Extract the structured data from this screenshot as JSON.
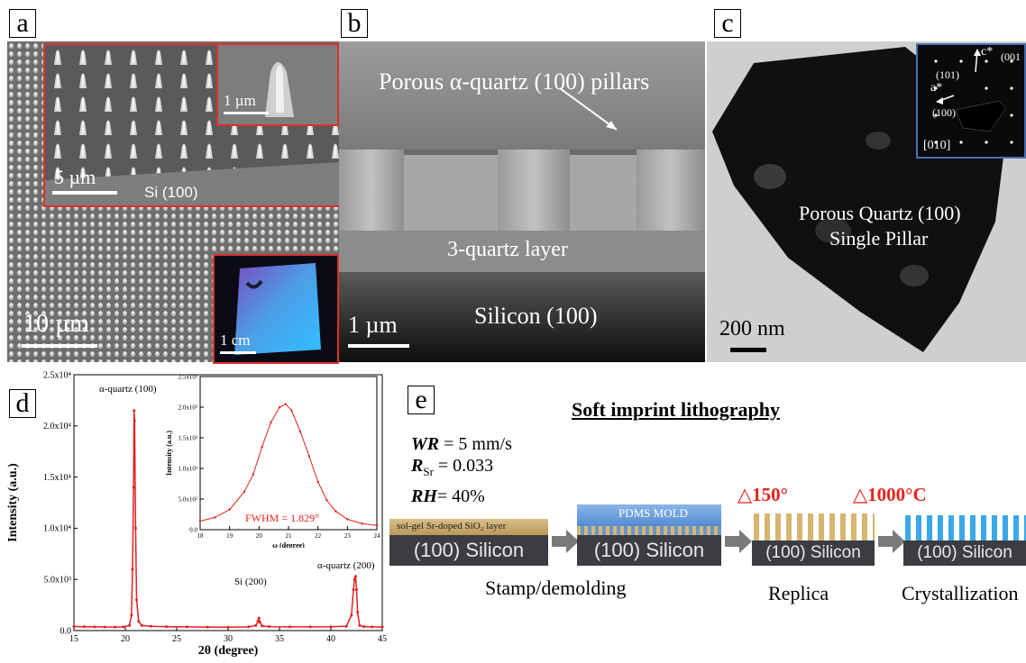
{
  "panels": {
    "a": {
      "label": "a",
      "inset_top_scale": "5 µm",
      "inset_top_substrate": "Si (100)",
      "inset_small_scale": "1 µm",
      "main_scale": "10 µm",
      "photo_scale": "1 cm"
    },
    "b": {
      "label": "b",
      "top_text": "Porous α-quartz (100) pillars",
      "layer_text": "3-quartz layer",
      "substrate_text": "Silicon (100)",
      "scale": "1 µm"
    },
    "c": {
      "label": "c",
      "title_line1": "Porous Quartz (100)",
      "title_line2": "Single Pillar",
      "scale": "200 nm",
      "saed": {
        "c_star": "c*",
        "a_star": "a*",
        "hkl_001": "(001",
        "hkl_101": "(101)",
        "hkl_100": "(100)",
        "zone": "[010]"
      }
    },
    "d": {
      "label": "d",
      "peak_labels": {
        "q100": "α-quartz (100)",
        "si200": "Si (200)",
        "q200": "α-quartz (200)"
      },
      "inset_fwhm": "FWHM = 1.829°"
    },
    "e": {
      "label": "e",
      "title": "Soft imprint lithography",
      "params": {
        "wr_sym": "WR",
        "wr_val": " = 5 mm/s",
        "rsr_sym": "R",
        "rsr_sub": "Sr",
        "rsr_val": " = 0.033",
        "rh_sym": "RH",
        "rh_val": "= 40%"
      },
      "temp1": "△150°",
      "temp2": "△1000°C",
      "sol_gel_layer": "sol-gel Sr-doped SiO₂ layer",
      "pdms_mold": "PDMS MOLD",
      "silicon_1": "(100) Silicon",
      "silicon_2": "(100) Silicon",
      "silicon_3": "(100) Silicon",
      "silicon_4": "(100) Silicon",
      "stage1": "Stamp/demolding",
      "stage2": "Replica",
      "stage3": "Crystallization"
    }
  },
  "chart_data": [
    {
      "type": "line",
      "title": "",
      "xlabel": "2θ (degree)",
      "ylabel": "Intensity (a.u.)",
      "xlim": [
        15,
        45
      ],
      "ylim": [
        0,
        25000
      ],
      "xticks": [
        "15",
        "20",
        "25",
        "30",
        "35",
        "40",
        "45"
      ],
      "yticks": [
        "0.0",
        "5.0x10³",
        "1.0x10⁴",
        "1.5x10⁴",
        "2.0x10⁴",
        "2.5x10⁴"
      ],
      "color": "#e02020",
      "series": [
        {
          "x": [
            15,
            16,
            17,
            18,
            19,
            19.8,
            20.4,
            20.6,
            20.7,
            20.8,
            20.85,
            20.9,
            21.0,
            21.1,
            21.3,
            21.6,
            22.5,
            24,
            26,
            28,
            30,
            32,
            32.7,
            32.9,
            33.0,
            33.1,
            33.3,
            34,
            36,
            38,
            40,
            41.5,
            42.0,
            42.2,
            42.3,
            42.4,
            42.5,
            42.6,
            42.8,
            43.2,
            44,
            45
          ],
          "y": [
            400,
            380,
            360,
            350,
            340,
            360,
            500,
            1500,
            6000,
            14000,
            21500,
            20500,
            10000,
            3000,
            900,
            500,
            420,
            380,
            360,
            340,
            330,
            360,
            500,
            900,
            1200,
            800,
            450,
            380,
            360,
            360,
            370,
            420,
            1500,
            4000,
            5000,
            5300,
            4000,
            1800,
            500,
            380,
            360,
            350
          ]
        }
      ],
      "annotations": [
        "α-quartz (100)",
        "Si (200)",
        "α-quartz (200)"
      ]
    },
    {
      "type": "line",
      "title": "",
      "xlabel": "ω (degree)",
      "ylabel": "Intensity (a.u.)",
      "xlim": [
        18,
        24
      ],
      "ylim": [
        0,
        2500
      ],
      "xticks": [
        "18",
        "19",
        "20",
        "21",
        "22",
        "23",
        "24"
      ],
      "yticks": [
        "0.0",
        "5.0x10²",
        "1.0x10³",
        "1.5x10³",
        "2.0x10³",
        "2.5x10³"
      ],
      "color": "#e02020",
      "series": [
        {
          "x": [
            18,
            18.5,
            19,
            19.5,
            19.8,
            20.1,
            20.4,
            20.7,
            20.9,
            21.1,
            21.4,
            21.7,
            22,
            22.3,
            22.6,
            23,
            23.5,
            24
          ],
          "y": [
            140,
            200,
            330,
            620,
            900,
            1350,
            1750,
            2000,
            2050,
            1950,
            1600,
            1200,
            780,
            480,
            300,
            170,
            100,
            70
          ]
        }
      ],
      "annotations": [
        "FWHM = 1.829°"
      ]
    }
  ]
}
